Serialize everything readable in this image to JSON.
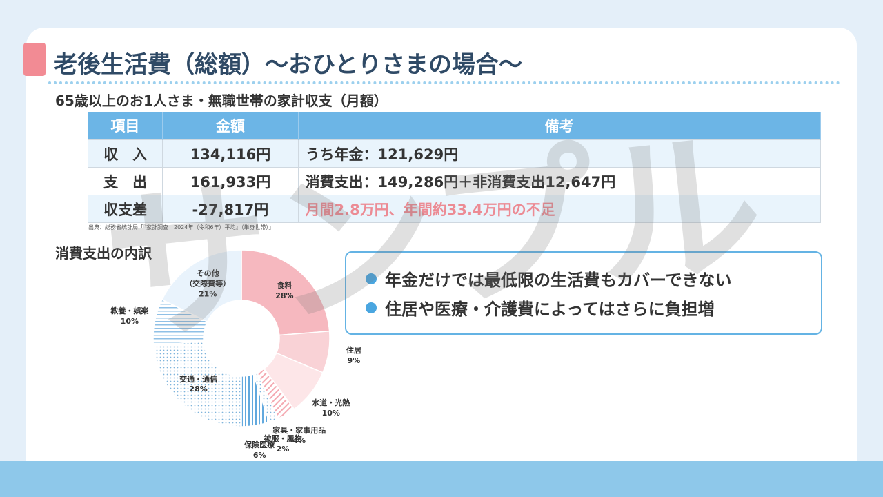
{
  "header": {
    "title": "老後生活費（総額）～おひとりさまの場合～",
    "subtitle": "65歳以上のお1人さま・無職世帯の家計収支（月額）"
  },
  "table": {
    "columns": [
      "項目",
      "金額",
      "備考"
    ],
    "rows": [
      [
        "収　入",
        "134,116円",
        "うち年金：121,629円"
      ],
      [
        "支　出",
        "161,933円",
        "消費支出：149,286円＋非消費支出12,647円"
      ],
      [
        "収支差",
        "-27,817円",
        "月間2.8万円、年間約33.4万円の不足"
      ]
    ]
  },
  "source": "出典：総務省統計局「『家計調査　2024年（令和6年）平均』（単身世帯）」",
  "points": [
    "年金だけでは最低限の生活費もカバーできない",
    "住居や医療・介護費によってはさらに負担増"
  ],
  "watermark": "サンプル",
  "chart_data": {
    "type": "pie",
    "title": "消費支出の内訳",
    "donut": true,
    "categories": [
      "食料",
      "住居",
      "水道・光熱",
      "家具・家事用品",
      "被服・履物",
      "保険医療",
      "交通・通信",
      "教養・娯楽",
      "その他\n（交際費等）"
    ],
    "values": [
      28,
      9,
      10,
      4,
      2,
      6,
      28,
      10,
      21
    ],
    "value_labels": [
      "28%",
      "9%",
      "10%",
      "4%",
      "2%",
      "6%",
      "28%",
      "10%",
      "21%"
    ],
    "colors": [
      "#f6b8bf",
      "#f9d2d6",
      "#fde6e8",
      "#f4a9b1",
      "#9fb8d0",
      "#62a9de",
      "#7fb4dc",
      "#8fc0e6",
      "#e9f3fc"
    ],
    "patterns": [
      "solid",
      "solid",
      "solid",
      "diagonal",
      "dots",
      "vertical",
      "dots",
      "horizontal",
      "solid"
    ]
  }
}
